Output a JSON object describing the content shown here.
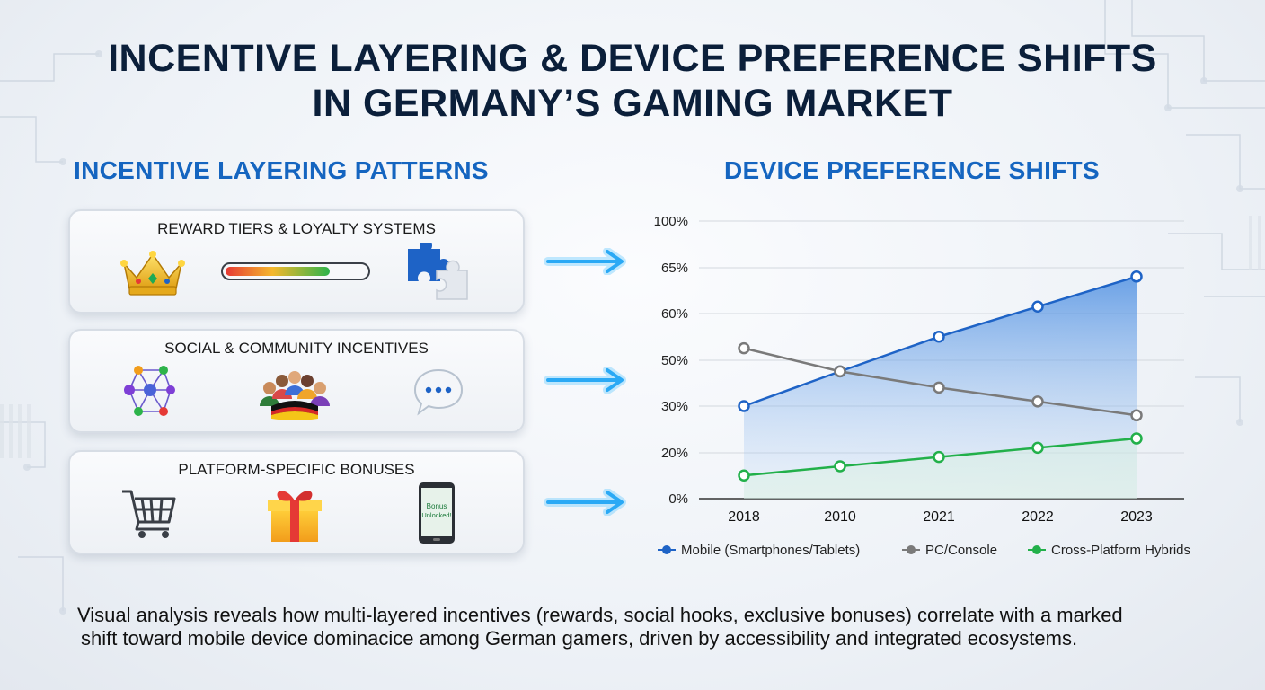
{
  "title_line1": "INCENTIVE LAYERING & DEVICE PREFERENCE SHIFTS",
  "title_line2": "IN GERMANY’S GAMING MARKET",
  "left_heading": "INCENTIVE LAYERING PATTERNS",
  "right_heading": "DEVICE PREFERENCE SHIFTS",
  "cards": [
    {
      "label": "REWARD TIERS & LOYALTY SYSTEMS",
      "icons": [
        "crown-icon",
        "progress-bar-icon",
        "puzzle-icon"
      ]
    },
    {
      "label": "SOCIAL & COMMUNITY INCENTIVES",
      "icons": [
        "network-icon",
        "community-icon",
        "chat-bubble-icon"
      ]
    },
    {
      "label": "PLATFORM-SPECIFIC BONUSES",
      "icons": [
        "shopping-cart-icon",
        "gift-box-icon",
        "phone-icon"
      ]
    }
  ],
  "phone_text": [
    "Bonus",
    "Unlocked!"
  ],
  "colors": {
    "accent": "#1565c0",
    "mobile": "#1e63c6",
    "pc": "#7a7a7a",
    "hybrid": "#22b04a",
    "arrow": "#4fc3ff"
  },
  "chart_data": {
    "type": "line",
    "x": [
      "2018",
      "2010",
      "2021",
      "2022",
      "2023"
    ],
    "y_ticks": [
      "0%",
      "20%",
      "30%",
      "50%",
      "60%",
      "65%",
      "100%"
    ],
    "series": [
      {
        "name": "Mobile (Smartphones/Tablets)",
        "values": [
          40,
          55,
          70,
          83,
          96
        ],
        "area": true
      },
      {
        "name": "PC/Console",
        "values": [
          65,
          55,
          48,
          42,
          36
        ]
      },
      {
        "name": "Cross-Platform Hybrids",
        "values": [
          10,
          14,
          18,
          22,
          26
        ]
      }
    ],
    "ylim": [
      0,
      120
    ],
    "grid": true,
    "legend": "bottom"
  },
  "footer_line1": "Visual analysis reveals how multi-layered incentives (rewards, social hooks, exclusive bonuses) correlate with a marked",
  "footer_line2": "shift toward mobile device dominacice among German gamers, driven by accessibility and integrated ecosystems."
}
